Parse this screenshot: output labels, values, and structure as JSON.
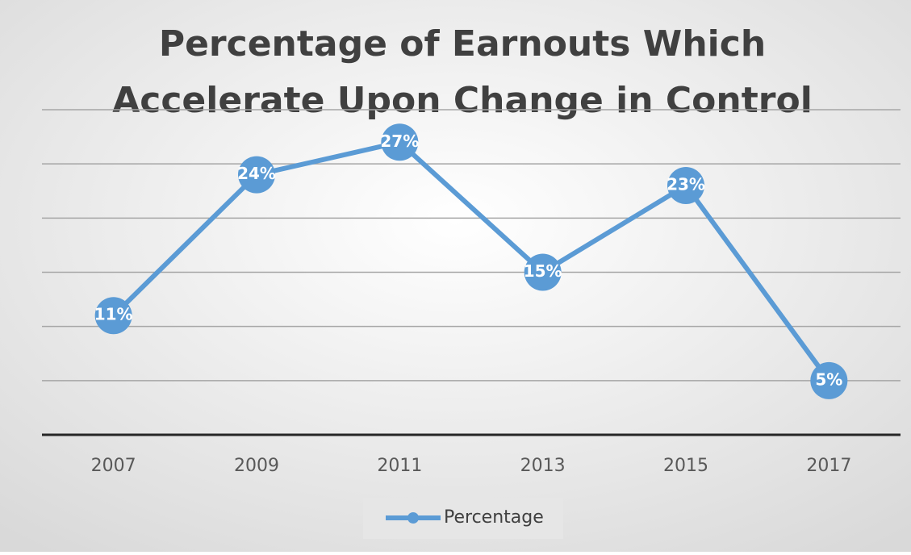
{
  "chart_data": {
    "type": "line",
    "title": [
      "Percentage of Earnouts Which",
      "Accelerate Upon Change in Control"
    ],
    "categories": [
      "2007",
      "2009",
      "2011",
      "2013",
      "2015",
      "2017"
    ],
    "series": [
      {
        "name": "Percentage",
        "color": "#5b9bd5",
        "values": [
          11,
          24,
          27,
          15,
          23,
          5
        ],
        "value_labels": [
          "11%",
          "24%",
          "27%",
          "15%",
          "23%",
          "5%"
        ]
      }
    ],
    "ylim": [
      0,
      30
    ],
    "yticks": [
      0,
      5,
      10,
      15,
      20,
      25,
      30
    ],
    "grid": true,
    "legend": "bottom"
  }
}
